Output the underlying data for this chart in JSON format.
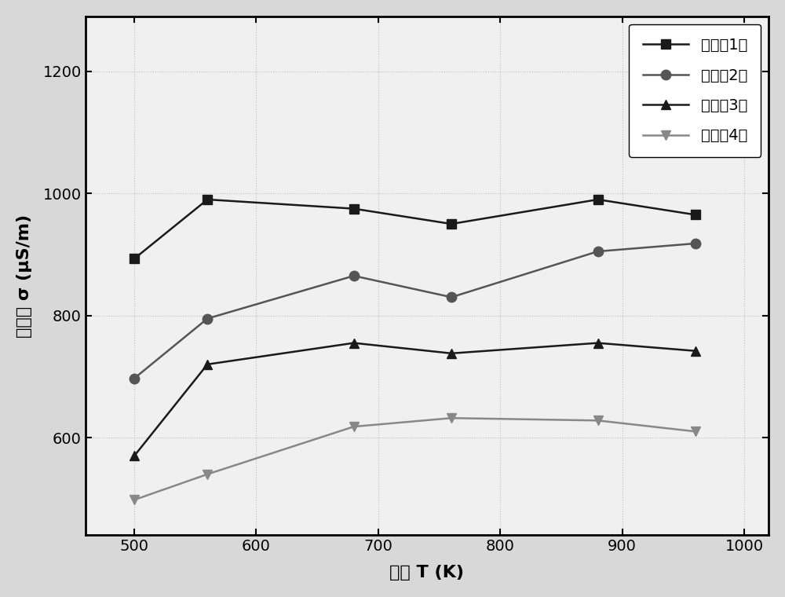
{
  "x": [
    500,
    560,
    680,
    760,
    880,
    960
  ],
  "series": [
    {
      "label": "实施奡1：",
      "y": [
        893,
        990,
        975,
        950,
        990,
        965
      ],
      "color": "#1a1a1a",
      "marker": "s",
      "markersize": 9
    },
    {
      "label": "实施奡2：",
      "y": [
        697,
        795,
        865,
        830,
        905,
        918
      ],
      "color": "#555555",
      "marker": "o",
      "markersize": 9
    },
    {
      "label": "实施奡3：",
      "y": [
        570,
        720,
        755,
        738,
        755,
        742
      ],
      "color": "#1a1a1a",
      "marker": "^",
      "markersize": 9
    },
    {
      "label": "实施奡4：",
      "y": [
        498,
        540,
        618,
        632,
        628,
        610
      ],
      "color": "#888888",
      "marker": "v",
      "markersize": 9
    }
  ],
  "xlabel": "温度 T (K)",
  "ylabel": "电导率 σ (μS/m)",
  "xlim": [
    460,
    1020
  ],
  "ylim": [
    440,
    1290
  ],
  "xticks": [
    500,
    600,
    700,
    800,
    900,
    1000
  ],
  "yticks": [
    600,
    800,
    1000,
    1200
  ],
  "legend_loc": "upper right",
  "plot_bg_color": "#f0f0f0",
  "fig_bg_color": "#d8d8d8",
  "linewidth": 1.8,
  "label_fontsize": 16,
  "tick_fontsize": 14,
  "legend_fontsize": 14
}
